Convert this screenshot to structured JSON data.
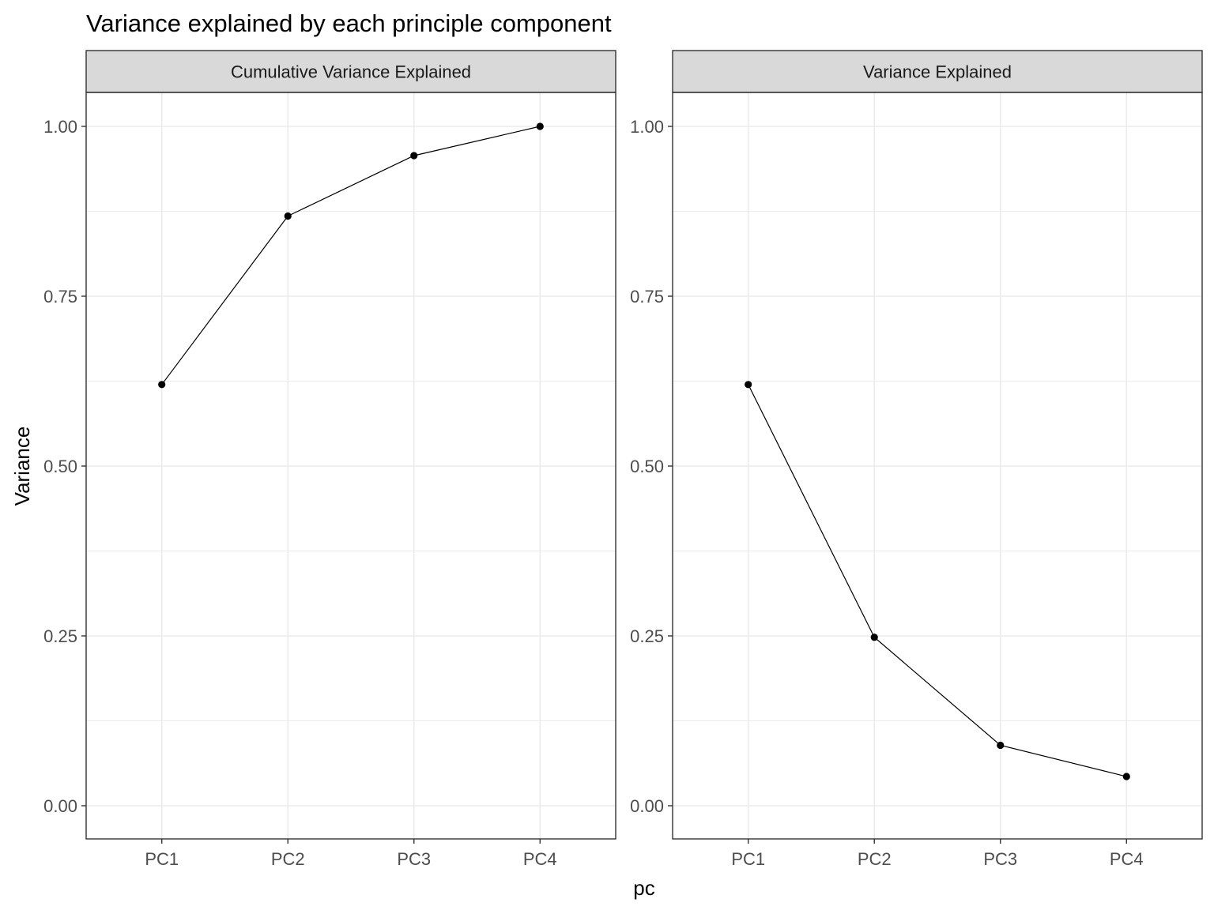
{
  "chart_data": {
    "type": "line",
    "title": "Variance explained by each principle component",
    "xlabel": "pc",
    "ylabel": "Variance",
    "ylim": [
      0,
      1
    ],
    "y_ticks": [
      "0.00",
      "0.25",
      "0.50",
      "0.75",
      "1.00"
    ],
    "y_tick_values": [
      0,
      0.25,
      0.5,
      0.75,
      1
    ],
    "categories": [
      "PC1",
      "PC2",
      "PC3",
      "PC4"
    ],
    "grid": true,
    "facets": [
      {
        "name": "Cumulative Variance Explained",
        "values": [
          0.62,
          0.868,
          0.957,
          1.0
        ]
      },
      {
        "name": "Variance Explained",
        "values": [
          0.62,
          0.248,
          0.089,
          0.043
        ]
      }
    ]
  }
}
